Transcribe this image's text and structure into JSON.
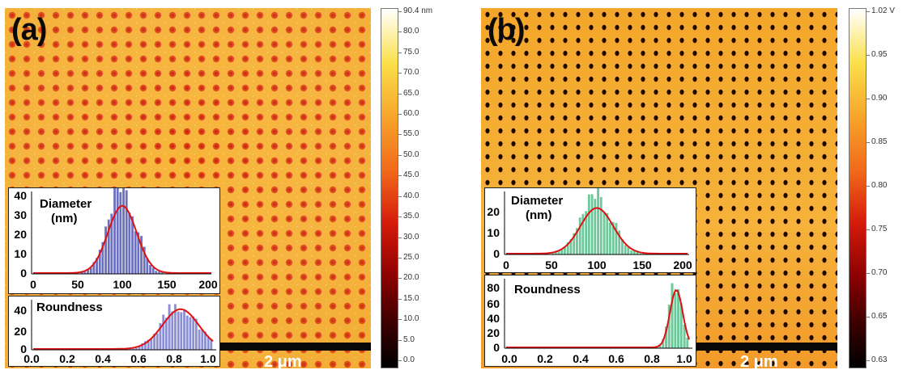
{
  "panel_a": {
    "label": "(a)",
    "scalebar_text": "2 μm",
    "colorbar": {
      "unit_max": "90.4 nm",
      "ticks": [
        "80.0",
        "75.0",
        "70.0",
        "65.0",
        "60.0",
        "55.0",
        "50.0",
        "45.0",
        "40.0",
        "35.0",
        "30.0",
        "25.0",
        "20.0",
        "15.0",
        "10.0",
        "5.0",
        "0.0"
      ],
      "colors": [
        "#000000",
        "#3a0000",
        "#8a0000",
        "#d41a0a",
        "#f26a1a",
        "#f7a52a",
        "#fbe04a",
        "#ffffff"
      ]
    },
    "diameter_inset": {
      "label_line1": "Diameter",
      "label_line2": "(nm)",
      "x_ticks": [
        "0",
        "50",
        "100",
        "150",
        "200"
      ],
      "y_ticks": [
        "0",
        "10",
        "20",
        "30",
        "40"
      ],
      "bar_color": "#6b6fbf",
      "fit_color": "#e01010"
    },
    "roundness_inset": {
      "label": "Roundness",
      "x_ticks": [
        "0.0",
        "0.2",
        "0.4",
        "0.6",
        "0.8",
        "1.0"
      ],
      "y_ticks": [
        "0",
        "20",
        "40"
      ],
      "bar_color": "#8a8ed4",
      "fit_color": "#e01010"
    }
  },
  "panel_b": {
    "label": "(b)",
    "scalebar_text": "2 μm",
    "colorbar": {
      "unit_max": "1.02 V",
      "ticks": [
        "0.95",
        "0.90",
        "0.85",
        "0.80",
        "0.75",
        "0.70",
        "0.65",
        "0.63"
      ],
      "colors": [
        "#000000",
        "#3a0000",
        "#8a0000",
        "#d41a0a",
        "#f26a1a",
        "#f7a52a",
        "#fbe04a",
        "#ffffff"
      ]
    },
    "diameter_inset": {
      "label_line1": "Diameter",
      "label_line2": "(nm)",
      "x_ticks": [
        "0",
        "50",
        "100",
        "150",
        "200"
      ],
      "y_ticks": [
        "0",
        "10",
        "20"
      ],
      "bar_color": "#6cc79a",
      "fit_color": "#e01010"
    },
    "roundness_inset": {
      "label": "Roundness",
      "x_ticks": [
        "0.0",
        "0.2",
        "0.4",
        "0.6",
        "0.8",
        "1.0"
      ],
      "y_ticks": [
        "0",
        "20",
        "40",
        "60",
        "80"
      ],
      "bar_color": "#6cc79a",
      "fit_color": "#e01010"
    }
  }
}
